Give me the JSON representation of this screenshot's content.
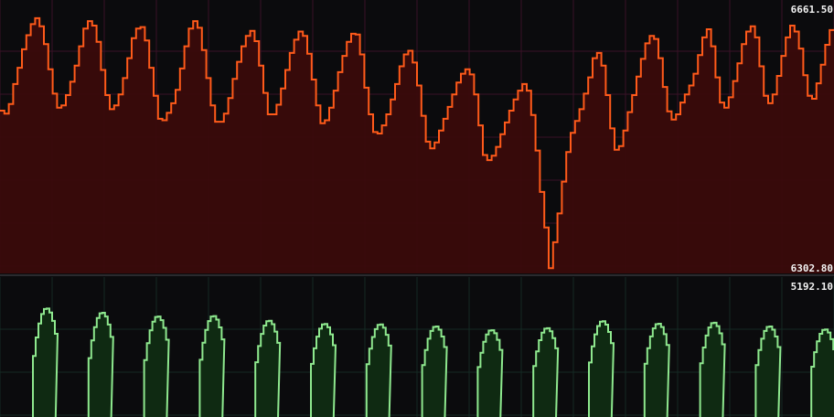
{
  "chart_data": [
    {
      "type": "area",
      "step": true,
      "color": "#ff5a1a",
      "fill": "#3a0b0b",
      "grid_color": "#3a1226",
      "y_max_label": "6661.50",
      "y_min_label": "6302.80",
      "ylim": [
        6302.8,
        6661.5
      ],
      "grid": true,
      "y": [
        6523,
        6519,
        6532,
        6559,
        6581,
        6606,
        6625,
        6640,
        6648,
        6637,
        6613,
        6579,
        6546,
        6527,
        6530,
        6544,
        6562,
        6584,
        6610,
        6634,
        6644,
        6638,
        6616,
        6578,
        6544,
        6525,
        6530,
        6545,
        6567,
        6594,
        6621,
        6634,
        6636,
        6618,
        6581,
        6543,
        6512,
        6510,
        6520,
        6533,
        6551,
        6580,
        6610,
        6634,
        6644,
        6635,
        6605,
        6567,
        6530,
        6508,
        6508,
        6519,
        6540,
        6566,
        6589,
        6610,
        6624,
        6631,
        6617,
        6584,
        6547,
        6518,
        6518,
        6531,
        6553,
        6578,
        6601,
        6619,
        6630,
        6624,
        6600,
        6565,
        6530,
        6506,
        6510,
        6527,
        6550,
        6575,
        6597,
        6616,
        6627,
        6626,
        6599,
        6554,
        6518,
        6494,
        6492,
        6503,
        6518,
        6538,
        6559,
        6583,
        6599,
        6604,
        6588,
        6557,
        6516,
        6481,
        6472,
        6480,
        6496,
        6512,
        6528,
        6545,
        6561,
        6573,
        6579,
        6572,
        6545,
        6503,
        6463,
        6456,
        6462,
        6474,
        6491,
        6507,
        6523,
        6538,
        6550,
        6559,
        6550,
        6517,
        6469,
        6413,
        6365,
        6310,
        6345,
        6384,
        6427,
        6467,
        6493,
        6509,
        6525,
        6546,
        6568,
        6594,
        6601,
        6584,
        6544,
        6499,
        6470,
        6475,
        6496,
        6521,
        6544,
        6569,
        6593,
        6614,
        6624,
        6620,
        6594,
        6555,
        6522,
        6511,
        6518,
        6534,
        6545,
        6557,
        6573,
        6598,
        6622,
        6633,
        6610,
        6568,
        6534,
        6527,
        6541,
        6563,
        6587,
        6613,
        6630,
        6637,
        6622,
        6583,
        6543,
        6533,
        6545,
        6570,
        6597,
        6622,
        6638,
        6630,
        6607,
        6571,
        6543,
        6539,
        6560,
        6585,
        6612,
        6632
      ]
    },
    {
      "type": "area",
      "step": true,
      "color": "#8ee88e",
      "fill": "#0f2a12",
      "grid_color": "#152a24",
      "y_max_label": "5192.10",
      "ylim_top": 5192.1,
      "grid": true,
      "peaks": [
        5192.1,
        5175,
        5160,
        5162,
        5143,
        5130,
        5128,
        5120,
        5105,
        5113,
        5141,
        5131,
        5135,
        5120,
        5108
      ]
    }
  ]
}
